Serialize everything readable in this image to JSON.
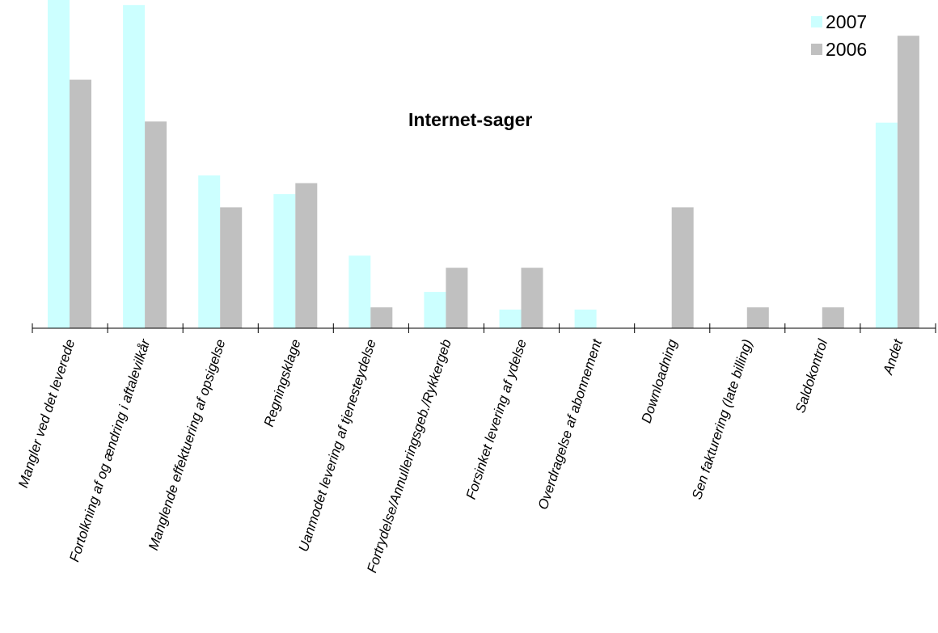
{
  "chart_data": {
    "type": "bar",
    "title": "Internet-sager",
    "categories": [
      "Mangler ved det leverede",
      "Fortolkning af og ændring i aftalevilkår",
      "Manglende effektuering af opsigelse",
      "Regningsklage",
      "Uanmodet levering af tjenesteydelse",
      "Fortrydelse/Annulleringsgeb./Rykkergeb",
      "Forsinket levering af ydelse",
      "Overdragelse af abonnement",
      "Downloadning",
      "Sen fakturering (late billing)",
      "Saldokontrol",
      "Andet"
    ],
    "series": [
      {
        "name": "2007",
        "color": "#ccffff",
        "values": [
          30,
          29.4,
          13.9,
          12.2,
          6.6,
          3.3,
          1.7,
          1.7,
          0,
          0,
          0,
          18.7
        ]
      },
      {
        "name": "2006",
        "color": "#c0c0c0",
        "values": [
          22.6,
          18.8,
          11,
          13.2,
          1.9,
          5.5,
          5.5,
          0,
          11,
          1.9,
          1.9,
          26.6
        ]
      }
    ],
    "legend_position": "top-right",
    "grid": false
  }
}
